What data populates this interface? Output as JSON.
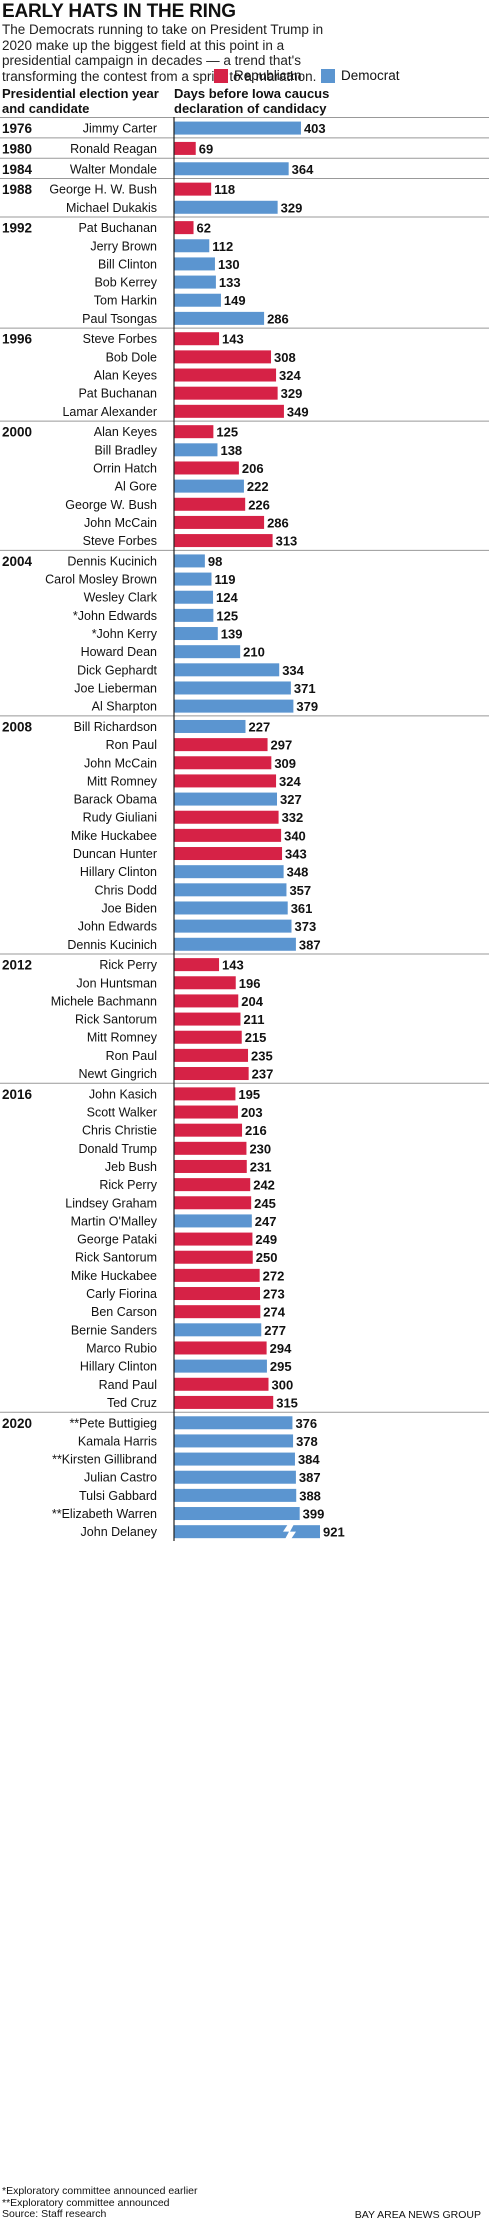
{
  "title": "EARLY HATS IN THE RING",
  "subtitle": "The Democrats running to take on President Trump in 2020 make up the biggest field at this point in a presidential campaign in decades — a trend that's transforming the contest from a sprint to a marathon.",
  "legend": {
    "republican": "Republican",
    "democrat": "Democrat"
  },
  "colors": {
    "republican": "#d62246",
    "democrat": "#5b95d0",
    "separator": "#999999"
  },
  "left_header": [
    "Presidential election year",
    "and candidate"
  ],
  "right_header": [
    "Days before Iowa caucus",
    "declaration of candidacy"
  ],
  "footnotes": [
    "*Exploratory committee announced earlier",
    "**Exploratory committee announced",
    "Source: Staff research"
  ],
  "credit": "BAY AREA NEWS GROUP",
  "chart_data": {
    "type": "bar",
    "orientation": "horizontal",
    "x_label": "Days before Iowa caucus declaration of candidacy",
    "axis_break": "bar for John Delaney (921) is shown with a break",
    "groups": [
      {
        "year": "1976",
        "candidates": [
          {
            "name": "Jimmy Carter",
            "party": "D",
            "days": 403
          }
        ]
      },
      {
        "year": "1980",
        "candidates": [
          {
            "name": "Ronald Reagan",
            "party": "R",
            "days": 69
          }
        ]
      },
      {
        "year": "1984",
        "candidates": [
          {
            "name": "Walter Mondale",
            "party": "D",
            "days": 364
          }
        ]
      },
      {
        "year": "1988",
        "candidates": [
          {
            "name": "George H. W. Bush",
            "party": "R",
            "days": 118
          },
          {
            "name": "Michael Dukakis",
            "party": "D",
            "days": 329
          }
        ]
      },
      {
        "year": "1992",
        "candidates": [
          {
            "name": "Pat Buchanan",
            "party": "R",
            "days": 62
          },
          {
            "name": "Jerry Brown",
            "party": "D",
            "days": 112
          },
          {
            "name": "Bill Clinton",
            "party": "D",
            "days": 130
          },
          {
            "name": "Bob Kerrey",
            "party": "D",
            "days": 133
          },
          {
            "name": "Tom Harkin",
            "party": "D",
            "days": 149
          },
          {
            "name": "Paul Tsongas",
            "party": "D",
            "days": 286
          }
        ]
      },
      {
        "year": "1996",
        "candidates": [
          {
            "name": "Steve Forbes",
            "party": "R",
            "days": 143
          },
          {
            "name": "Bob Dole",
            "party": "R",
            "days": 308
          },
          {
            "name": "Alan Keyes",
            "party": "R",
            "days": 324
          },
          {
            "name": "Pat Buchanan",
            "party": "R",
            "days": 329
          },
          {
            "name": "Lamar Alexander",
            "party": "R",
            "days": 349
          }
        ]
      },
      {
        "year": "2000",
        "candidates": [
          {
            "name": "Alan Keyes",
            "party": "R",
            "days": 125
          },
          {
            "name": "Bill Bradley",
            "party": "D",
            "days": 138
          },
          {
            "name": "Orrin Hatch",
            "party": "R",
            "days": 206
          },
          {
            "name": "Al Gore",
            "party": "D",
            "days": 222
          },
          {
            "name": "George W. Bush",
            "party": "R",
            "days": 226
          },
          {
            "name": "John McCain",
            "party": "R",
            "days": 286
          },
          {
            "name": "Steve Forbes",
            "party": "R",
            "days": 313
          }
        ]
      },
      {
        "year": "2004",
        "candidates": [
          {
            "name": "Dennis Kucinich",
            "party": "D",
            "days": 98
          },
          {
            "name": "Carol Mosley Brown",
            "party": "D",
            "days": 119
          },
          {
            "name": "Wesley Clark",
            "party": "D",
            "days": 124
          },
          {
            "name": "*John Edwards",
            "party": "D",
            "days": 125
          },
          {
            "name": "*John Kerry",
            "party": "D",
            "days": 139
          },
          {
            "name": "Howard Dean",
            "party": "D",
            "days": 210
          },
          {
            "name": "Dick Gephardt",
            "party": "D",
            "days": 334
          },
          {
            "name": "Joe Lieberman",
            "party": "D",
            "days": 371
          },
          {
            "name": "Al Sharpton",
            "party": "D",
            "days": 379
          }
        ]
      },
      {
        "year": "2008",
        "candidates": [
          {
            "name": "Bill Richardson",
            "party": "D",
            "days": 227
          },
          {
            "name": "Ron Paul",
            "party": "R",
            "days": 297
          },
          {
            "name": "John McCain",
            "party": "R",
            "days": 309
          },
          {
            "name": "Mitt Romney",
            "party": "R",
            "days": 324
          },
          {
            "name": "Barack Obama",
            "party": "D",
            "days": 327
          },
          {
            "name": "Rudy Giuliani",
            "party": "R",
            "days": 332
          },
          {
            "name": "Mike Huckabee",
            "party": "R",
            "days": 340
          },
          {
            "name": "Duncan Hunter",
            "party": "R",
            "days": 343
          },
          {
            "name": "Hillary Clinton",
            "party": "D",
            "days": 348
          },
          {
            "name": "Chris Dodd",
            "party": "D",
            "days": 357
          },
          {
            "name": "Joe Biden",
            "party": "D",
            "days": 361
          },
          {
            "name": "John Edwards",
            "party": "D",
            "days": 373
          },
          {
            "name": "Dennis Kucinich",
            "party": "D",
            "days": 387
          }
        ]
      },
      {
        "year": "2012",
        "candidates": [
          {
            "name": "Rick Perry",
            "party": "R",
            "days": 143
          },
          {
            "name": "Jon Huntsman",
            "party": "R",
            "days": 196
          },
          {
            "name": "Michele Bachmann",
            "party": "R",
            "days": 204
          },
          {
            "name": "Rick Santorum",
            "party": "R",
            "days": 211
          },
          {
            "name": "Mitt Romney",
            "party": "R",
            "days": 215
          },
          {
            "name": "Ron Paul",
            "party": "R",
            "days": 235
          },
          {
            "name": "Newt Gingrich",
            "party": "R",
            "days": 237
          }
        ]
      },
      {
        "year": "2016",
        "candidates": [
          {
            "name": "John Kasich",
            "party": "R",
            "days": 195
          },
          {
            "name": "Scott Walker",
            "party": "R",
            "days": 203
          },
          {
            "name": "Chris Christie",
            "party": "R",
            "days": 216
          },
          {
            "name": "Donald Trump",
            "party": "R",
            "days": 230
          },
          {
            "name": "Jeb Bush",
            "party": "R",
            "days": 231
          },
          {
            "name": "Rick Perry",
            "party": "R",
            "days": 242
          },
          {
            "name": "Lindsey Graham",
            "party": "R",
            "days": 245
          },
          {
            "name": "Martin O'Malley",
            "party": "D",
            "days": 247
          },
          {
            "name": "George Pataki",
            "party": "R",
            "days": 249
          },
          {
            "name": "Rick Santorum",
            "party": "R",
            "days": 250
          },
          {
            "name": "Mike Huckabee",
            "party": "R",
            "days": 272
          },
          {
            "name": "Carly Fiorina",
            "party": "R",
            "days": 273
          },
          {
            "name": "Ben Carson",
            "party": "R",
            "days": 274
          },
          {
            "name": "Bernie Sanders",
            "party": "D",
            "days": 277
          },
          {
            "name": "Marco Rubio",
            "party": "R",
            "days": 294
          },
          {
            "name": "Hillary Clinton",
            "party": "D",
            "days": 295
          },
          {
            "name": "Rand Paul",
            "party": "R",
            "days": 300
          },
          {
            "name": "Ted Cruz",
            "party": "R",
            "days": 315
          }
        ]
      },
      {
        "year": "2020",
        "candidates": [
          {
            "name": "**Pete Buttigieg",
            "party": "D",
            "days": 376
          },
          {
            "name": "Kamala Harris",
            "party": "D",
            "days": 378
          },
          {
            "name": "**Kirsten Gillibrand",
            "party": "D",
            "days": 384
          },
          {
            "name": "Julian Castro",
            "party": "D",
            "days": 387
          },
          {
            "name": "Tulsi Gabbard",
            "party": "D",
            "days": 388
          },
          {
            "name": "**Elizabeth Warren",
            "party": "D",
            "days": 399
          },
          {
            "name": "John Delaney",
            "party": "D",
            "days": 921,
            "broken": true
          }
        ]
      }
    ]
  }
}
